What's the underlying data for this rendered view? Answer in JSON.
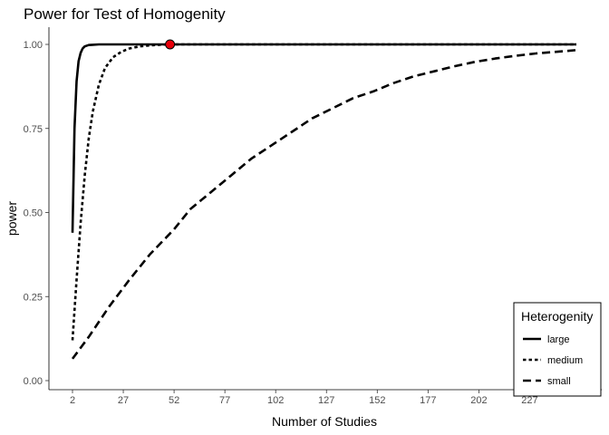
{
  "chart_data": {
    "type": "line",
    "title": "Power for Test of Homogenity",
    "xlabel": "Number of Studies",
    "ylabel": "power",
    "xlim": [
      2,
      250
    ],
    "ylim": [
      0,
      1
    ],
    "x_ticks": [
      "2",
      "27",
      "52",
      "77",
      "102",
      "127",
      "152",
      "177",
      "202",
      "227"
    ],
    "y_ticks": [
      "0.00",
      "0.25",
      "0.50",
      "0.75",
      "1.00"
    ],
    "legend": {
      "title": "Heterogenity",
      "position": "bottom-right",
      "items": [
        "large",
        "medium",
        "small"
      ]
    },
    "series": [
      {
        "name": "large",
        "style": "solid",
        "x": [
          2,
          3,
          4,
          5,
          6,
          7,
          8,
          10,
          12,
          15,
          20,
          30,
          50,
          100,
          150,
          200,
          250
        ],
        "values": [
          0.44,
          0.75,
          0.89,
          0.95,
          0.975,
          0.988,
          0.994,
          0.998,
          0.999,
          1.0,
          1.0,
          1.0,
          1.0,
          1.0,
          1.0,
          1.0,
          1.0
        ]
      },
      {
        "name": "medium",
        "style": "dotted",
        "x": [
          2,
          4,
          6,
          8,
          10,
          12,
          15,
          18,
          22,
          26,
          30,
          35,
          40,
          45,
          50,
          60,
          80,
          100,
          150,
          200,
          250
        ],
        "values": [
          0.12,
          0.3,
          0.47,
          0.61,
          0.72,
          0.8,
          0.88,
          0.93,
          0.962,
          0.978,
          0.988,
          0.994,
          0.997,
          0.999,
          1.0,
          1.0,
          1.0,
          1.0,
          1.0,
          1.0,
          1.0
        ]
      },
      {
        "name": "small",
        "style": "dashed",
        "x": [
          2,
          10,
          20,
          30,
          40,
          52,
          60,
          70,
          80,
          90,
          100,
          110,
          120,
          130,
          140,
          150,
          160,
          170,
          180,
          190,
          200,
          210,
          220,
          230,
          240,
          250
        ],
        "values": [
          0.065,
          0.13,
          0.22,
          0.3,
          0.375,
          0.45,
          0.51,
          0.56,
          0.61,
          0.66,
          0.7,
          0.74,
          0.78,
          0.81,
          0.84,
          0.86,
          0.885,
          0.905,
          0.92,
          0.935,
          0.948,
          0.958,
          0.966,
          0.973,
          0.978,
          0.983
        ]
      }
    ],
    "highlight_point": {
      "x": 50,
      "y": 1.0,
      "color": "#e8000b"
    }
  }
}
